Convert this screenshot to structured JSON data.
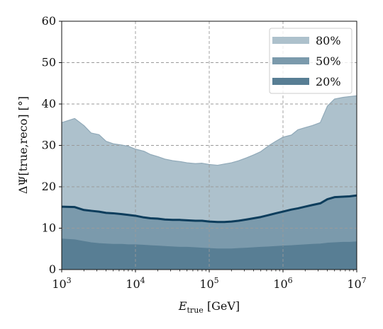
{
  "chart_data": {
    "type": "area",
    "title": "",
    "xlabel": "E_true [GeV]",
    "xlabel_main": "E",
    "xlabel_sub": "true",
    "xlabel_unit": " [GeV]",
    "ylabel": "ΔΨ[true,reco] [°]",
    "x_scale": "log",
    "xlim": [
      1000,
      10000000
    ],
    "ylim": [
      0,
      60
    ],
    "x_ticks": [
      1000,
      10000,
      100000,
      1000000,
      10000000
    ],
    "x_tick_labels": [
      {
        "base": "10",
        "exp": "3"
      },
      {
        "base": "10",
        "exp": "4"
      },
      {
        "base": "10",
        "exp": "5"
      },
      {
        "base": "10",
        "exp": "6"
      },
      {
        "base": "10",
        "exp": "7"
      }
    ],
    "y_ticks": [
      0,
      10,
      20,
      30,
      40,
      50,
      60
    ],
    "y_tick_labels": [
      "0",
      "10",
      "20",
      "30",
      "40",
      "50",
      "60"
    ],
    "grid": true,
    "legend_position": "top-right",
    "x": [
      1000,
      1500,
      2000,
      2500,
      3200,
      4000,
      5000,
      6500,
      8000,
      10000,
      13000,
      16000,
      20000,
      25000,
      32000,
      40000,
      50000,
      65000,
      80000,
      100000,
      130000,
      160000,
      200000,
      250000,
      320000,
      400000,
      500000,
      650000,
      800000,
      1000000,
      1300000,
      1600000,
      2000000,
      2500000,
      3200000,
      4000000,
      5000000,
      6500000,
      8000000,
      10000000
    ],
    "series": [
      {
        "name": "80%",
        "fill": "#adc1cc",
        "stroke": "#90a9b8",
        "stroke_width": 1.2,
        "values": [
          35.5,
          36.5,
          34.8,
          33.0,
          32.6,
          31.0,
          30.4,
          30.1,
          29.8,
          29.1,
          28.6,
          27.8,
          27.3,
          26.7,
          26.3,
          26.1,
          25.8,
          25.6,
          25.7,
          25.4,
          25.2,
          25.5,
          25.8,
          26.3,
          27.0,
          27.7,
          28.5,
          30.0,
          31.0,
          32.0,
          32.5,
          33.8,
          34.3,
          34.8,
          35.5,
          39.5,
          41.2,
          41.6,
          41.8,
          42.0
        ]
      },
      {
        "name": "50%",
        "fill": "#7b9aac",
        "stroke": "#0d3d5c",
        "stroke_width": 3.0,
        "values": [
          15.2,
          15.1,
          14.4,
          14.2,
          14.0,
          13.7,
          13.6,
          13.4,
          13.2,
          13.0,
          12.6,
          12.4,
          12.3,
          12.1,
          12.0,
          12.0,
          11.9,
          11.8,
          11.8,
          11.6,
          11.5,
          11.5,
          11.6,
          11.8,
          12.1,
          12.4,
          12.7,
          13.2,
          13.6,
          14.0,
          14.5,
          14.8,
          15.2,
          15.6,
          16.0,
          17.0,
          17.5,
          17.6,
          17.7,
          17.9
        ]
      },
      {
        "name": "20%",
        "fill": "#587e94",
        "stroke": "#587e94",
        "stroke_width": 1.0,
        "values": [
          7.4,
          7.2,
          6.8,
          6.5,
          6.3,
          6.2,
          6.1,
          6.1,
          6.0,
          6.0,
          5.9,
          5.8,
          5.7,
          5.6,
          5.5,
          5.4,
          5.4,
          5.3,
          5.2,
          5.1,
          5.0,
          5.0,
          5.0,
          5.1,
          5.2,
          5.3,
          5.4,
          5.5,
          5.6,
          5.7,
          5.8,
          5.9,
          6.0,
          6.1,
          6.2,
          6.4,
          6.5,
          6.6,
          6.6,
          6.7
        ]
      }
    ]
  }
}
